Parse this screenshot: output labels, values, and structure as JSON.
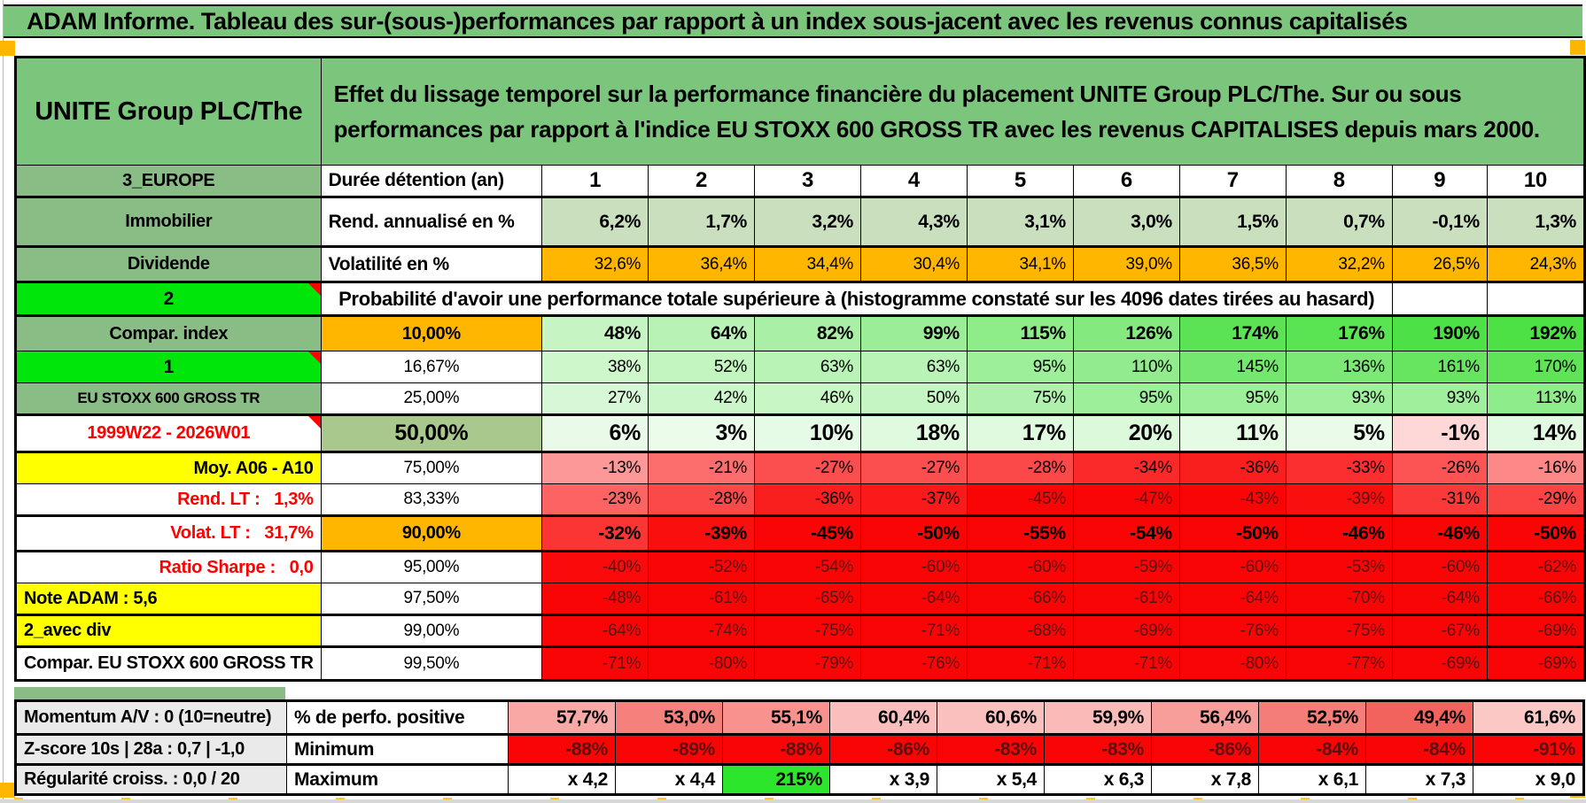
{
  "title": "ADAM Informe. Tableau des sur-(sous-)performances par rapport à un index sous-jacent avec les revenus connus capitalisés",
  "colors": {
    "header-green": "#7CC57D",
    "label-green": "#8ABD86",
    "bright-green": "#00E60B",
    "max-green": "#2CE62C",
    "orange": "#FFB600",
    "yellow": "#FFFF00",
    "sage": "#A8C88D",
    "light-green": "#C9DFBE",
    "gray-label": "#EAEAEA",
    "note-red": "#FF0000"
  },
  "sheet": {
    "asset_cell": "UNITE Group PLC/The",
    "description": "Effet du lissage temporel sur la performance financière du placement UNITE Group PLC/The. Sur ou sous performances par rapport à l'indice EU STOXX 600 GROSS TR avec les revenus CAPITALISES depuis mars 2000.",
    "duration_row": {
      "a": "3_EUROPE",
      "b": "Durée détention (an)",
      "years": [
        "1",
        "2",
        "3",
        "4",
        "5",
        "6",
        "7",
        "8",
        "9",
        "10"
      ]
    },
    "probability_note": "Probabilité d'avoir une performance totale supérieure à (histogramme constaté sur les 4096 dates tirées au hasard)",
    "rows": [
      {
        "id": "rend",
        "a": "Immobilier",
        "b": "Rend. annualisé en %",
        "cells": [
          "6,2%",
          "1,7%",
          "3,2%",
          "4,3%",
          "3,1%",
          "3,0%",
          "1,5%",
          "0,7%",
          "-0,1%",
          "1,3%"
        ]
      },
      {
        "id": "volat",
        "a": "Dividende",
        "b": "Volatilité en %",
        "cells": [
          "32,6%",
          "36,4%",
          "34,4%",
          "30,4%",
          "34,1%",
          "39,0%",
          "36,5%",
          "32,2%",
          "26,5%",
          "24,3%"
        ]
      },
      {
        "id": "prob",
        "a": "2"
      },
      {
        "id": "p10",
        "a": "Compar. index",
        "b": "10,00%",
        "cells": [
          "48%",
          "64%",
          "82%",
          "99%",
          "115%",
          "126%",
          "174%",
          "176%",
          "190%",
          "192%"
        ]
      },
      {
        "id": "p1667",
        "a": "1",
        "b": "16,67%",
        "cells": [
          "38%",
          "52%",
          "63%",
          "63%",
          "95%",
          "110%",
          "145%",
          "136%",
          "161%",
          "170%"
        ]
      },
      {
        "id": "p25",
        "a": "EU STOXX 600 GROSS TR",
        "b": "25,00%",
        "cells": [
          "27%",
          "42%",
          "46%",
          "50%",
          "75%",
          "95%",
          "95%",
          "93%",
          "93%",
          "113%"
        ]
      },
      {
        "id": "p50",
        "a": "1999W22 - 2026W01",
        "b": "50,00%",
        "cells": [
          "6%",
          "3%",
          "10%",
          "18%",
          "17%",
          "20%",
          "11%",
          "5%",
          "-1%",
          "14%"
        ]
      },
      {
        "id": "p75",
        "a": "Moy. A06 - A10",
        "b": "75,00%",
        "cells": [
          "-13%",
          "-21%",
          "-27%",
          "-27%",
          "-28%",
          "-34%",
          "-36%",
          "-33%",
          "-26%",
          "-16%"
        ]
      },
      {
        "id": "p8333",
        "a": "Rend. LT :   1,3%",
        "b": "83,33%",
        "cells": [
          "-23%",
          "-28%",
          "-36%",
          "-37%",
          "-45%",
          "-47%",
          "-43%",
          "-39%",
          "-31%",
          "-29%"
        ]
      },
      {
        "id": "p90",
        "a": "Volat. LT :   31,7%",
        "b": "90,00%",
        "cells": [
          "-32%",
          "-39%",
          "-45%",
          "-50%",
          "-55%",
          "-54%",
          "-50%",
          "-46%",
          "-46%",
          "-50%"
        ]
      },
      {
        "id": "p95",
        "a": "Ratio Sharpe :   0,0",
        "b": "95,00%",
        "cells": [
          "-40%",
          "-52%",
          "-54%",
          "-60%",
          "-60%",
          "-59%",
          "-60%",
          "-53%",
          "-60%",
          "-62%"
        ]
      },
      {
        "id": "p975",
        "a": "Note ADAM : 5,6",
        "b": "97,50%",
        "cells": [
          "-48%",
          "-61%",
          "-65%",
          "-64%",
          "-66%",
          "-61%",
          "-64%",
          "-70%",
          "-64%",
          "-66%"
        ]
      },
      {
        "id": "p99",
        "a": "2_avec div",
        "b": "99,00%",
        "cells": [
          "-64%",
          "-74%",
          "-75%",
          "-71%",
          "-68%",
          "-69%",
          "-76%",
          "-75%",
          "-67%",
          "-69%"
        ]
      },
      {
        "id": "p995",
        "a": "Compar. EU STOXX 600 GROSS TR",
        "b": "99,50%",
        "cells": [
          "-71%",
          "-80%",
          "-79%",
          "-76%",
          "-71%",
          "-71%",
          "-80%",
          "-77%",
          "-69%",
          "-69%"
        ]
      }
    ],
    "bottom_rows": [
      {
        "id": "perfo",
        "a": "Momentum A/V : 0 (10=neutre)",
        "b": "% de perfo. positive",
        "cells": [
          "57,7%",
          "53,0%",
          "55,1%",
          "60,4%",
          "60,6%",
          "59,9%",
          "56,4%",
          "52,5%",
          "49,4%",
          "61,6%"
        ]
      },
      {
        "id": "min",
        "a": "Z-score 10s | 28a : 0,7 | -1,0",
        "b": "Minimum",
        "cells": [
          "-88%",
          "-89%",
          "-88%",
          "-86%",
          "-83%",
          "-83%",
          "-86%",
          "-84%",
          "-84%",
          "-91%"
        ]
      },
      {
        "id": "max",
        "a": "Régularité croiss. : 0,0 / 20",
        "b": "Maximum",
        "cells": [
          "x 4,2",
          "x 4,4",
          "215%",
          "x 3,9",
          "x 5,4",
          "x 6,3",
          "x 7,8",
          "x 6,1",
          "x 7,3",
          "x 9,0"
        ]
      }
    ]
  }
}
